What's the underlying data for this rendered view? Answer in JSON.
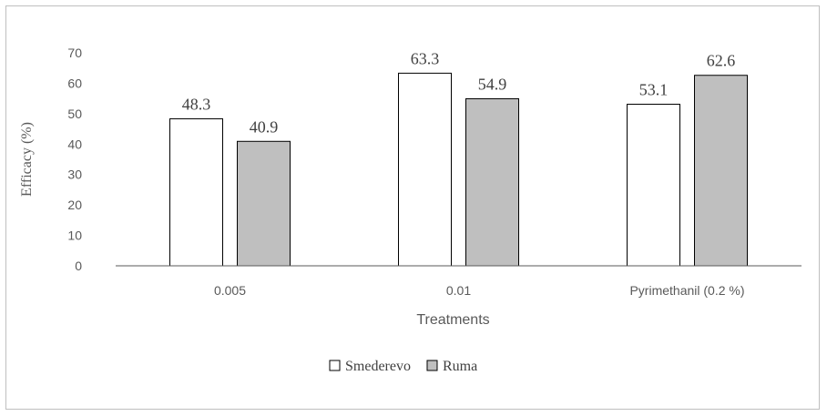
{
  "chart_data": {
    "type": "bar",
    "categories": [
      "0.005",
      "0.01",
      "Pyrimethanil (0.2 %)"
    ],
    "series": [
      {
        "name": "Smederevo",
        "values": [
          48.3,
          63.3,
          53.1
        ],
        "color": "#ffffff"
      },
      {
        "name": "Ruma",
        "values": [
          40.9,
          54.9,
          62.6
        ],
        "color": "#bfbfbf"
      }
    ],
    "value_labels": [
      [
        "48.3",
        "63.3",
        "53.1"
      ],
      [
        "40.9",
        "54.9",
        "62.6"
      ]
    ],
    "xlabel": "Treatments",
    "ylabel": "Efficacy (%)",
    "ylim": [
      0,
      70
    ],
    "yticks": [
      0,
      10,
      20,
      30,
      40,
      50,
      60,
      70
    ],
    "grid": false,
    "legend_position": "bottom",
    "bar_outline_color": "#000000"
  }
}
